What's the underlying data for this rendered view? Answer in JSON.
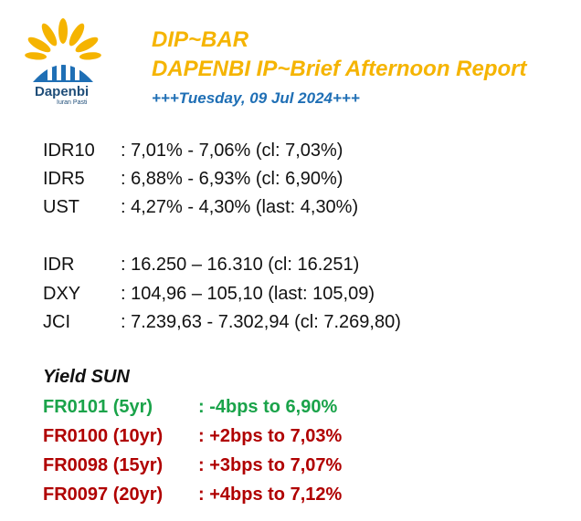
{
  "logo": {
    "name": "Dapenbi",
    "tagline": "Iuran Pasti"
  },
  "header": {
    "title": "DIP~BAR",
    "subtitle": "DAPENBI IP~Brief Afternoon Report",
    "date": "+++Tuesday, 09 Jul 2024+++"
  },
  "rates": [
    {
      "label": "IDR10",
      "value": ": 7,01% - 7,06% (cl: 7,03%)"
    },
    {
      "label": "IDR5",
      "value": ": 6,88% - 6,93% (cl: 6,90%)"
    },
    {
      "label": "UST",
      "value": ": 4,27% - 4,30% (last: 4,30%)"
    }
  ],
  "markets": [
    {
      "label": "IDR",
      "value": ": 16.250 – 16.310 (cl: 16.251)"
    },
    {
      "label": "DXY",
      "value": ": 104,96 – 105,10 (last: 105,09)"
    },
    {
      "label": "JCI",
      "value": ": 7.239,63 - 7.302,94 (cl: 7.269,80)"
    }
  ],
  "yield": {
    "title": "Yield SUN",
    "items": [
      {
        "label": "FR0101 (5yr)",
        "value": ": -4bps to 6,90%",
        "color": "#1aa34a"
      },
      {
        "label": "FR0100 (10yr)",
        "value": ": +2bps to 7,03%",
        "color": "#b00000"
      },
      {
        "label": "FR0098 (15yr)",
        "value": ": +3bps to 7,07%",
        "color": "#b00000"
      },
      {
        "label": "FR0097 (20yr)",
        "value": ": +4bps to 7,12%",
        "color": "#b00000"
      }
    ]
  }
}
